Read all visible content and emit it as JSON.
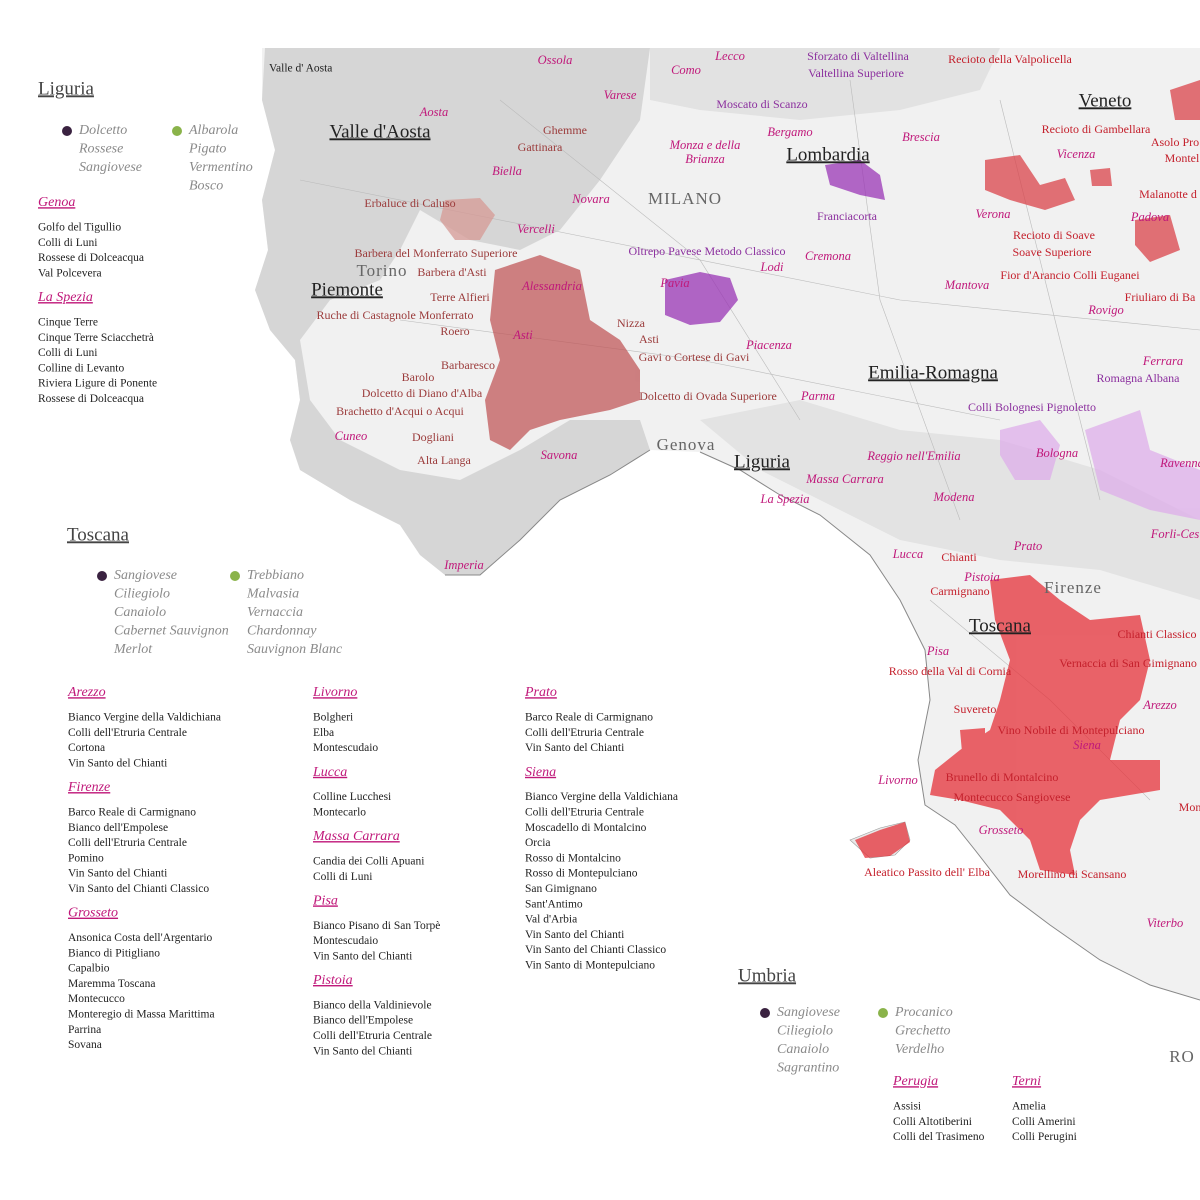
{
  "liguria": {
    "title": "Liguria",
    "red_grapes": [
      "Dolcetto",
      "Rossese",
      "Sangiovese"
    ],
    "white_grapes": [
      "Albarola",
      "Pigato",
      "Vermentino",
      "Bosco"
    ],
    "provinces": [
      {
        "name": "Genoa",
        "wines": [
          "Golfo del Tigullio",
          "Colli di Luni",
          "Rossese di Dolceacqua",
          "Val Polcevera"
        ]
      },
      {
        "name": "La Spezia",
        "wines": [
          "Cinque Terre",
          "Cinque Terre Sciacchetrà",
          "Colli di Luni",
          "Colline di Levanto",
          "Riviera Ligure di Ponente",
          "Rossese di Dolceacqua"
        ]
      }
    ]
  },
  "toscana": {
    "title": "Toscana",
    "red_grapes": [
      "Sangiovese",
      "Ciliegiolo",
      "Canaiolo",
      "Cabernet Sauvignon",
      "Merlot"
    ],
    "white_grapes": [
      "Trebbiano",
      "Malvasia",
      "Vernaccia",
      "Chardonnay",
      "Sauvignon Blanc"
    ],
    "provinces": [
      {
        "name": "Arezzo",
        "wines": [
          "Bianco Vergine della Valdichiana",
          "Colli dell'Etruria Centrale",
          "Cortona",
          "Vin Santo del Chianti"
        ]
      },
      {
        "name": "Firenze",
        "wines": [
          "Barco Reale di Carmignano",
          "Bianco dell'Empolese",
          "Colli dell'Etruria Centrale",
          "Pomino",
          "Vin Santo del Chianti",
          "Vin Santo del Chianti Classico"
        ]
      },
      {
        "name": "Grosseto",
        "wines": [
          "Ansonica Costa dell'Argentario",
          "Bianco di Pitigliano",
          "Capalbio",
          "Maremma Toscana",
          "Montecucco",
          "Monteregio di Massa Marittima",
          "Parrina",
          "Sovana"
        ]
      },
      {
        "name": "Livorno",
        "wines": [
          "Bolgheri",
          "Elba",
          "Montescudaio"
        ]
      },
      {
        "name": "Lucca",
        "wines": [
          "Colline Lucchesi",
          "Montecarlo"
        ]
      },
      {
        "name": "Massa Carrara",
        "wines": [
          "Candia dei Colli Apuani",
          "Colli di Luni"
        ]
      },
      {
        "name": "Pisa",
        "wines": [
          "Bianco Pisano di San Torpè",
          "Montescudaio",
          "Vin Santo del Chianti"
        ]
      },
      {
        "name": "Pistoia",
        "wines": [
          "Bianco della Valdinievole",
          "Bianco dell'Empolese",
          "Colli dell'Etruria Centrale",
          "Vin Santo del Chianti"
        ]
      },
      {
        "name": "Prato",
        "wines": [
          "Barco Reale di Carmignano",
          "Colli dell'Etruria Centrale",
          "Vin Santo del Chianti"
        ]
      },
      {
        "name": "Siena",
        "wines": [
          "Bianco Vergine della Valdichiana",
          "Colli dell'Etruria Centrale",
          "Moscadello di Montalcino",
          "Orcia",
          "Rosso di Montalcino",
          "Rosso di Montepulciano",
          "San Gimignano",
          "Sant'Antimo",
          "Val d'Arbia",
          "Vin Santo del Chianti",
          "Vin Santo del Chianti Classico",
          "Vin Santo di Montepulciano"
        ]
      }
    ]
  },
  "umbria": {
    "title": "Umbria",
    "red_grapes": [
      "Sangiovese",
      "Ciliegiolo",
      "Canaiolo",
      "Sagrantino"
    ],
    "white_grapes": [
      "Procanico",
      "Grechetto",
      "Verdelho"
    ],
    "provinces": [
      {
        "name": "Perugia",
        "wines": [
          "Assisi",
          "Colli Altotiberini",
          "Colli del Trasimeno"
        ]
      },
      {
        "name": "Terni",
        "wines": [
          "Amelia",
          "Colli Amerini",
          "Colli Perugini"
        ]
      }
    ]
  },
  "map": {
    "caption": "Valle d' Aosta",
    "regions": [
      "Valle d'Aosta",
      "Piemonte",
      "Lombardia",
      "Veneto",
      "Emilia-Romagna",
      "Liguria",
      "Toscana"
    ],
    "cities": [
      "MILANO",
      "Torino",
      "Genova",
      "Firenze",
      "RO"
    ],
    "provinces": [
      "Aosta",
      "Ossola",
      "Varese",
      "Como",
      "Lecco",
      "Bergamo",
      "Brescia",
      "Biella",
      "Novara",
      "Vercelli",
      "Alessandria",
      "Asti",
      "Pavia",
      "Lodi",
      "Cremona",
      "Mantova",
      "Piacenza",
      "Parma",
      "Cuneo",
      "Savona",
      "Imperia",
      "Vicenza",
      "Verona",
      "Padova",
      "Rovigo",
      "Ferrara",
      "Bologna",
      "Ravenna",
      "Reggio nell'Emilia",
      "Modena",
      "Massa Carrara",
      "La Spezia",
      "Forli-Ces",
      "Lucca",
      "Prato",
      "Pistoia",
      "Pisa",
      "Livorno",
      "Grosseto",
      "Siena",
      "Arezzo",
      "Viterbo",
      "Monza e della",
      "Brianza"
    ],
    "piemonte_wines": [
      "Erbaluce di Caluso",
      "Barbera del Monferrato Superiore",
      "Barbera d'Asti",
      "Terre Alfieri",
      "Ruche di Castagnole Monferrato",
      "Roero",
      "Nizza",
      "Asti",
      "Gavi o Cortese di Gavi",
      "Barbaresco",
      "Barolo",
      "Dolcetto di Diano d'Alba",
      "Dolcetto di Ovada Superiore",
      "Brachetto d'Acqui o Acqui",
      "Dogliani",
      "Alta Langa",
      "Ghemme",
      "Gattinara"
    ],
    "purple_wines": [
      "Sforzato di Valtellina",
      "Valtellina Superiore",
      "Moscato di Scanzo",
      "Franciacorta",
      "Oltrepo Pavese Metodo Classico",
      "Colli Bolognesi Pignoletto",
      "Romagna Albana"
    ],
    "red_wines": [
      "Recioto della Valpolicella",
      "Recioto di Gambellara",
      "Asolo Pro",
      "Montel",
      "Malanotte d",
      "Recioto di Soave",
      "Soave Superiore",
      "Fior d'Arancio Colli Euganei",
      "Friuliaro di Ba",
      "Chianti",
      "Carmignano",
      "Chianti Classico",
      "Rosso della Val di Cornia",
      "Vernaccia di San Gimignano",
      "Suvereto",
      "Vino Nobile di Montepulciano",
      "Brunello di Montalcino",
      "Montecucco Sangiovese",
      "Mon",
      "Aleatico Passito dell' Elba",
      "Morellino di Scansano"
    ]
  }
}
